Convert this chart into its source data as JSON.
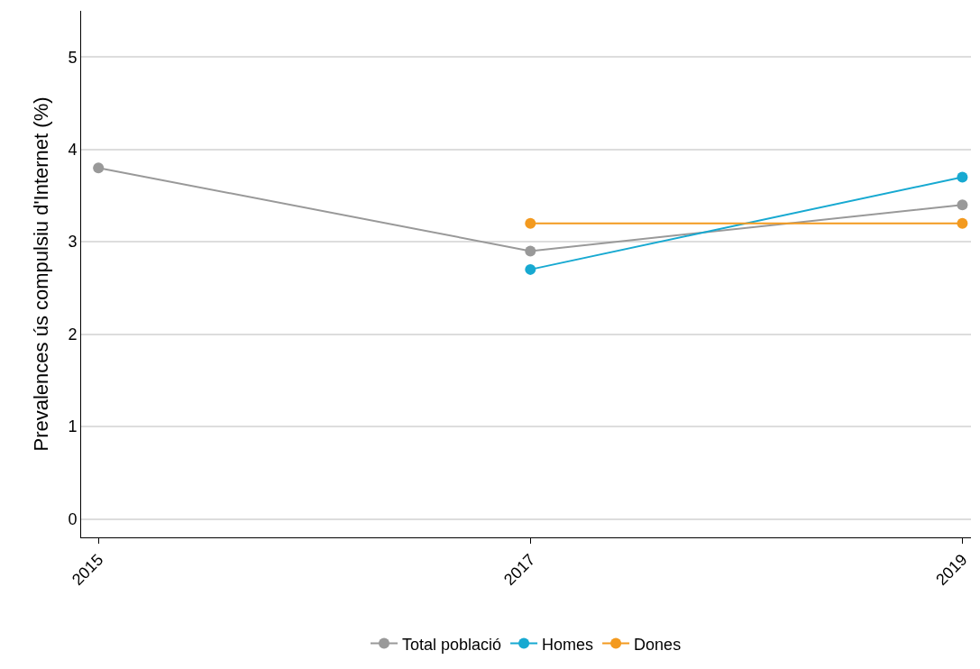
{
  "chart_data": {
    "type": "line",
    "ylabel": "Prevalences ús compulsiu d'Internet (%)",
    "x": [
      2015,
      2017,
      2019
    ],
    "series": [
      {
        "name": "Total població",
        "color": "#999999",
        "values": [
          3.8,
          2.9,
          3.4
        ]
      },
      {
        "name": "Homes",
        "color": "#17a9d1",
        "values": [
          null,
          2.7,
          3.7
        ]
      },
      {
        "name": "Dones",
        "color": "#f39a1f",
        "values": [
          null,
          3.2,
          3.2
        ]
      }
    ],
    "xlim": [
      2014.92,
      2019.04
    ],
    "xticks": [
      2015,
      2017,
      2019
    ],
    "ylim": [
      -0.2,
      5.5
    ],
    "yticks": [
      0,
      1,
      2,
      3,
      4,
      5
    ],
    "grid": "y",
    "legend": "bottom",
    "marker": "circle",
    "line_style": "solid"
  }
}
